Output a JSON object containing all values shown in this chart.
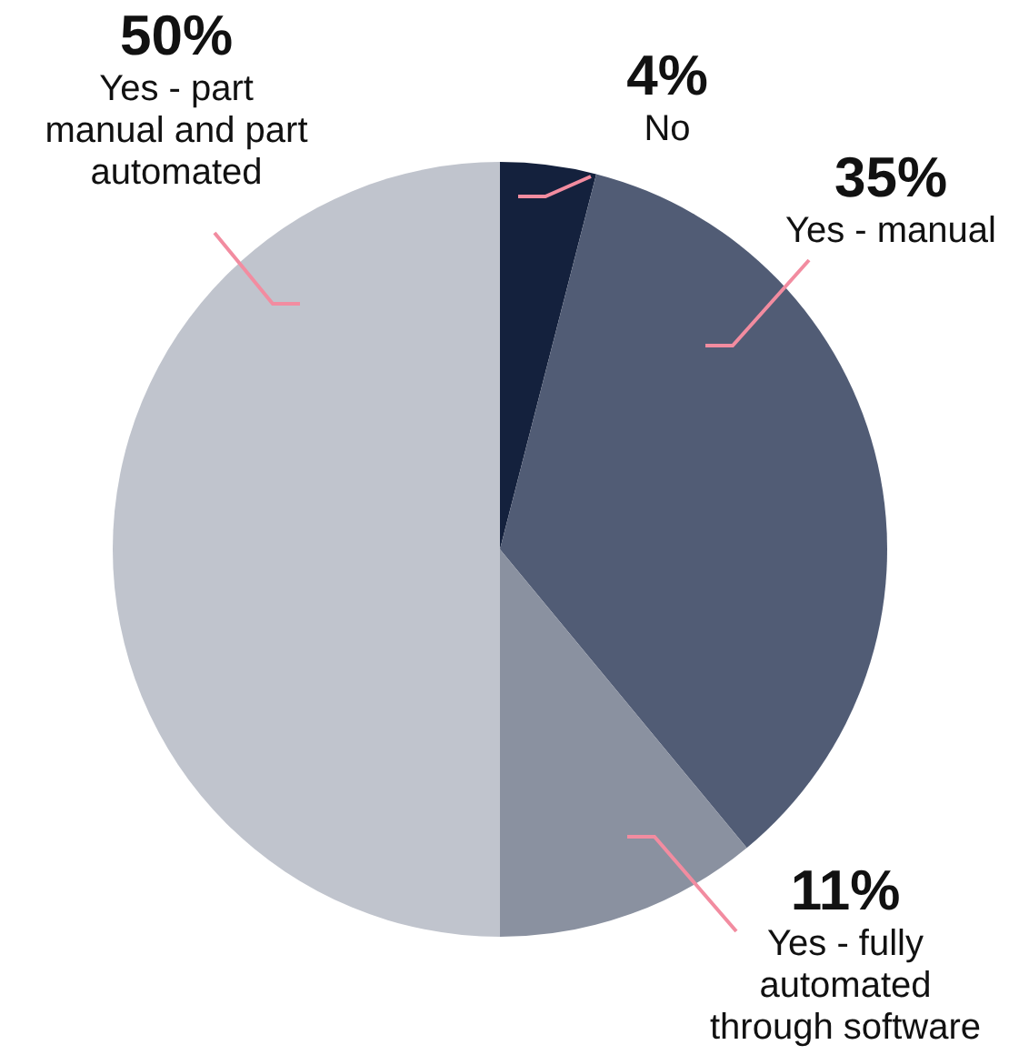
{
  "chart_data": {
    "type": "pie",
    "categories": [
      "No",
      "Yes - manual",
      "Yes - fully automated through software",
      "Yes - part manual and part automated"
    ],
    "values": [
      4,
      35,
      11,
      50
    ],
    "value_labels": [
      "4%",
      "35%",
      "11%",
      "50%"
    ],
    "colors": [
      "#14213d",
      "#515c75",
      "#8a91a0",
      "#c0c4cd"
    ],
    "legend": false
  }
}
